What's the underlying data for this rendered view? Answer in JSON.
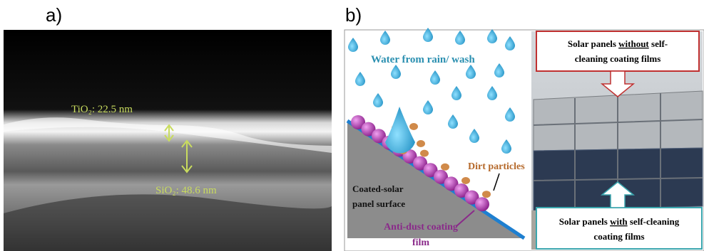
{
  "panel_a": {
    "label": "a)",
    "tio2_label": "TiO₂: 22.5 nm",
    "sio2_label": "SiO₂: 48.6 nm"
  },
  "panel_b": {
    "label": "b)",
    "water_label": "Water from rain/ wash",
    "dirt_label": "Dirt particles",
    "surface_label": [
      "Coated-solar",
      "panel surface"
    ],
    "film_label": [
      "Anti-dust coating",
      "film"
    ],
    "top_box": {
      "line1_start": "Solar panels ",
      "line1_underlined": "without",
      "line1_end": " self-",
      "line2": "cleaning coating films"
    },
    "bottom_box": {
      "line1_start": "Solar panels ",
      "line1_underlined": "with",
      "line1_end": " self-cleaning",
      "line2": "coating films"
    }
  }
}
